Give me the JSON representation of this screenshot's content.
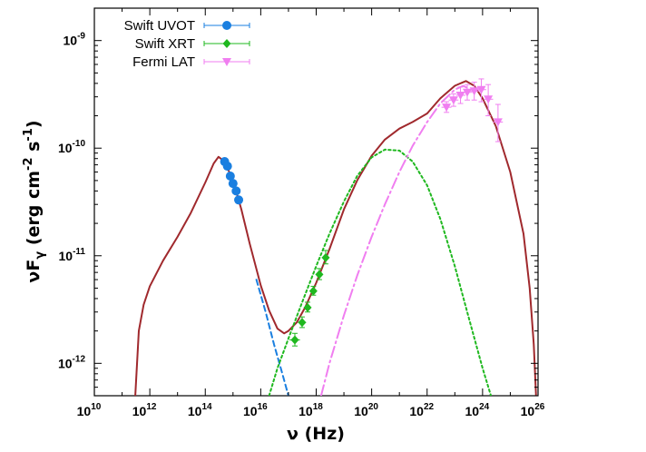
{
  "chart_data": {
    "type": "scatter",
    "xlabel": "ν (Hz)",
    "ylabel": "νF_γ (erg cm^-2 s^-1)",
    "xscale": "log",
    "yscale": "log",
    "xlim": [
      10000000000.0,
      1e+26
    ],
    "ylim": [
      5e-13,
      2e-09
    ],
    "x_ticks": [
      {
        "value": 10000000000.0,
        "base": "10",
        "exp": "10"
      },
      {
        "value": 1000000000000.0,
        "base": "10",
        "exp": "12"
      },
      {
        "value": 100000000000000.0,
        "base": "10",
        "exp": "14"
      },
      {
        "value": 1e+16,
        "base": "10",
        "exp": "16"
      },
      {
        "value": 1e+18,
        "base": "10",
        "exp": "18"
      },
      {
        "value": 1e+20,
        "base": "10",
        "exp": "20"
      },
      {
        "value": 1e+22,
        "base": "10",
        "exp": "22"
      },
      {
        "value": 1e+24,
        "base": "10",
        "exp": "24"
      },
      {
        "value": 1e+26,
        "base": "10",
        "exp": "26"
      }
    ],
    "y_ticks": [
      {
        "value": 1e-12,
        "base": "10",
        "exp": "-12"
      },
      {
        "value": 1e-11,
        "base": "10",
        "exp": "-11"
      },
      {
        "value": 1e-10,
        "base": "10",
        "exp": "-10"
      },
      {
        "value": 1e-09,
        "base": "10",
        "exp": "-9"
      }
    ],
    "legend_position": "top-left",
    "series": [
      {
        "name": "Swift UVOT",
        "color": "#1a7fe0",
        "marker": "circle",
        "points": [
          {
            "x": 500000000000000.0,
            "y": 7.5e-11
          },
          {
            "x": 630000000000000.0,
            "y": 6.8e-11
          },
          {
            "x": 800000000000000.0,
            "y": 5.5e-11
          },
          {
            "x": 1000000000000000.0,
            "y": 4.7e-11
          },
          {
            "x": 1300000000000000.0,
            "y": 4e-11
          },
          {
            "x": 1600000000000000.0,
            "y": 3.3e-11
          }
        ]
      },
      {
        "name": "Swift XRT",
        "color": "#1fb81f",
        "marker": "diamond",
        "points": [
          {
            "x": 1.7e+17,
            "y": 1.65e-12,
            "xerr": [
              1.1e+17,
              2.6e+17
            ],
            "yerr": [
              1.45e-12,
              1.9e-12
            ]
          },
          {
            "x": 3.1e+17,
            "y": 2.4e-12,
            "xerr": [
              2.2e+17,
              4.3e+17
            ],
            "yerr": [
              2.15e-12,
              2.7e-12
            ]
          },
          {
            "x": 4.9e+17,
            "y": 3.3e-12,
            "xerr": [
              3.6e+17,
              6.6e+17
            ],
            "yerr": [
              3e-12,
              3.7e-12
            ]
          },
          {
            "x": 7.9e+17,
            "y": 4.7e-12,
            "xerr": [
              5.8e+17,
              1.07e+18
            ],
            "yerr": [
              4.3e-12,
              5.2e-12
            ]
          },
          {
            "x": 1.3e+18,
            "y": 6.7e-12,
            "xerr": [
              9.5e+17,
              1.75e+18
            ],
            "yerr": [
              6e-12,
              7.6e-12
            ]
          },
          {
            "x": 2.2e+18,
            "y": 9.6e-12,
            "xerr": [
              1.6e+18,
              3e+18
            ],
            "yerr": [
              8.4e-12,
              1.12e-11
            ]
          }
        ]
      },
      {
        "name": "Fermi LAT",
        "color": "#f07ef0",
        "marker": "triangle-down",
        "points": [
          {
            "x": 5e+22,
            "y": 2.4e-10,
            "xerr": [
              3.3e+22,
              7.5e+22
            ],
            "yerr": [
              2.15e-10,
              2.7e-10
            ]
          },
          {
            "x": 9e+22,
            "y": 2.8e-10,
            "xerr": [
              6e+22,
              1.35e+23
            ],
            "yerr": [
              2.45e-10,
              3.2e-10
            ]
          },
          {
            "x": 1.6e+23,
            "y": 3.1e-10,
            "xerr": [
              1.1e+23,
              2.4e+23
            ],
            "yerr": [
              2.6e-10,
              3.7e-10
            ]
          },
          {
            "x": 2.8e+23,
            "y": 3.3e-10,
            "xerr": [
              1.9e+23,
              4.2e+23
            ],
            "yerr": [
              2.8e-10,
              3.9e-10
            ]
          },
          {
            "x": 5e+23,
            "y": 3.4e-10,
            "xerr": [
              3.3e+23,
              7.5e+23
            ],
            "yerr": [
              2.8e-10,
              4.1e-10
            ]
          },
          {
            "x": 9e+23,
            "y": 3.5e-10,
            "xerr": [
              6e+23,
              1.35e+24
            ],
            "yerr": [
              2.7e-10,
              4.4e-10
            ]
          },
          {
            "x": 1.6e+24,
            "y": 2.85e-10,
            "xerr": [
              1.1e+24,
              2.4e+24
            ],
            "yerr": [
              2e-10,
              3.9e-10
            ]
          },
          {
            "x": 3.6e+24,
            "y": 1.75e-10,
            "xerr": [
              2.4e+24,
              5.4e+24
            ],
            "yerr": [
              1.15e-10,
              2.55e-10
            ]
          }
        ]
      }
    ],
    "model_curves": [
      {
        "id": "total",
        "color": "#a0292d",
        "style": "solid",
        "points": [
          [
            300000000000.0,
            5e-13
          ],
          [
            400000000000.0,
            2e-12
          ],
          [
            600000000000.0,
            3.5e-12
          ],
          [
            1000000000000.0,
            5.2e-12
          ],
          [
            3000000000000.0,
            9e-12
          ],
          [
            10000000000000.0,
            1.5e-11
          ],
          [
            30000000000000.0,
            2.5e-11
          ],
          [
            100000000000000.0,
            4.8e-11
          ],
          [
            200000000000000.0,
            7.2e-11
          ],
          [
            300000000000000.0,
            8.3e-11
          ],
          [
            500000000000000.0,
            7.5e-11
          ],
          [
            1000000000000000.0,
            5e-11
          ],
          [
            2000000000000000.0,
            2.7e-11
          ],
          [
            4000000000000000.0,
            1.3e-11
          ],
          [
            1e+16,
            5.3e-12
          ],
          [
            2e+16,
            3.1e-12
          ],
          [
            4e+16,
            2.1e-12
          ],
          [
            7e+16,
            1.9e-12
          ],
          [
            1e+17,
            2e-12
          ],
          [
            2e+17,
            2.4e-12
          ],
          [
            4e+17,
            3.3e-12
          ],
          [
            1e+18,
            5.6e-12
          ],
          [
            3e+18,
            1.15e-11
          ],
          [
            1e+19,
            2.7e-11
          ],
          [
            3e+19,
            5e-11
          ],
          [
            1e+20,
            8.5e-11
          ],
          [
            3e+20,
            1.2e-10
          ],
          [
            1e+21,
            1.52e-10
          ],
          [
            3e+21,
            1.75e-10
          ],
          [
            1e+22,
            2.1e-10
          ],
          [
            3e+22,
            2.9e-10
          ],
          [
            1e+23,
            3.8e-10
          ],
          [
            2.5e+23,
            4.2e-10
          ],
          [
            5e+23,
            3.8e-10
          ],
          [
            1e+24,
            2.9e-10
          ],
          [
            3e+24,
            1.6e-10
          ],
          [
            1e+25,
            6e-11
          ],
          [
            3e+25,
            1.6e-11
          ],
          [
            5e+25,
            5e-12
          ],
          [
            7e+25,
            1.5e-12
          ],
          [
            8.5e+25,
            5e-13
          ]
        ]
      },
      {
        "id": "synchrotron-tail",
        "color": "#1a7fe0",
        "style": "dashed",
        "points": [
          [
            7000000000000000.0,
            6e-12
          ],
          [
            1.5e+16,
            3e-12
          ],
          [
            3e+16,
            1.5e-12
          ],
          [
            6e+16,
            8e-13
          ],
          [
            1e+17,
            5e-13
          ]
        ]
      },
      {
        "id": "inverse-compton",
        "color": "#1fb81f",
        "style": "dotted",
        "points": [
          [
            2e+16,
            5e-13
          ],
          [
            4e+16,
            9e-13
          ],
          [
            1e+17,
            1.7e-12
          ],
          [
            3e+17,
            3.6e-12
          ],
          [
            1e+18,
            8e-12
          ],
          [
            3e+18,
            1.6e-11
          ],
          [
            1e+19,
            3.2e-11
          ],
          [
            3e+19,
            5.5e-11
          ],
          [
            1e+20,
            8.2e-11
          ],
          [
            3e+20,
            9.7e-11
          ],
          [
            1e+21,
            9.5e-11
          ],
          [
            3e+21,
            7.5e-11
          ],
          [
            1e+22,
            4.5e-11
          ],
          [
            3e+22,
            2.2e-11
          ],
          [
            1e+23,
            8e-12
          ],
          [
            3e+23,
            2.8e-12
          ],
          [
            1e+24,
            9e-13
          ],
          [
            2e+24,
            5e-13
          ]
        ]
      },
      {
        "id": "external-compton",
        "color": "#f07ef0",
        "style": "dashdot",
        "points": [
          [
            1.5e+18,
            5e-13
          ],
          [
            3e+18,
            1e-12
          ],
          [
            1e+19,
            2.8e-12
          ],
          [
            3e+19,
            6.5e-12
          ],
          [
            1e+20,
            1.5e-11
          ],
          [
            3e+20,
            3e-11
          ],
          [
            1e+21,
            6e-11
          ],
          [
            3e+21,
            1.05e-10
          ],
          [
            1e+22,
            1.75e-10
          ],
          [
            3e+22,
            2.6e-10
          ],
          [
            1e+23,
            3.5e-10
          ],
          [
            2e+23,
            3.8e-10
          ],
          [
            3e+23,
            3.6e-10
          ]
        ]
      }
    ]
  }
}
